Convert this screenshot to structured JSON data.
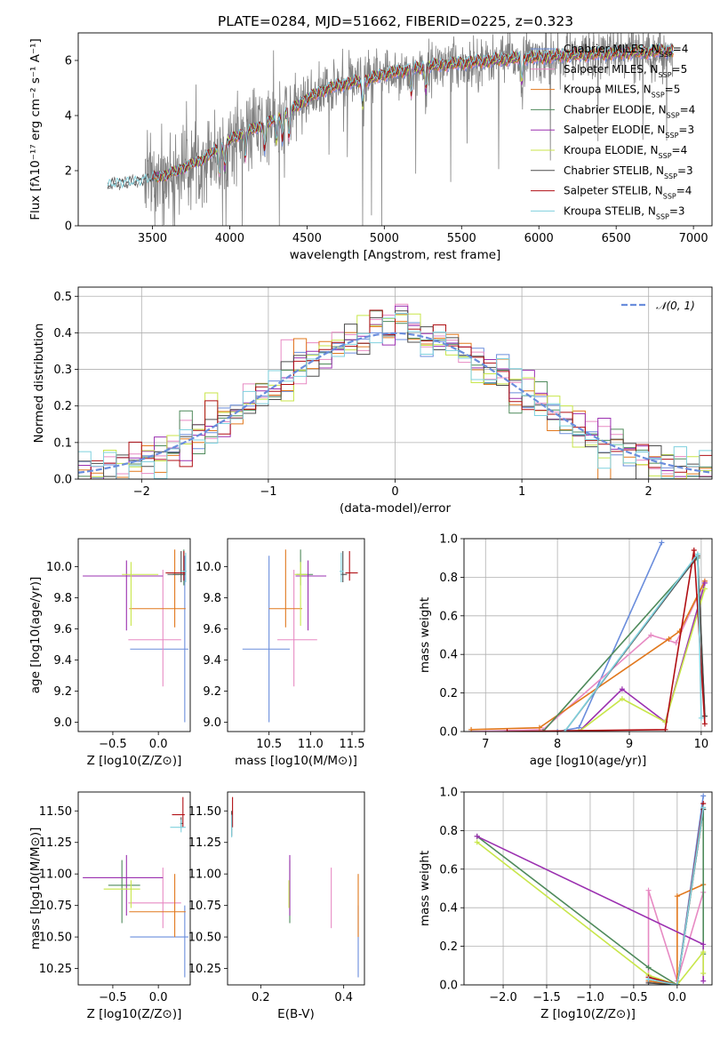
{
  "figure_title": "PLATE=0284, MJD=51662, FIBERID=0225, z=0.323",
  "colors": {
    "Chabrier MILES": "#6a8ddc",
    "Salpeter MILES": "#e78ac3",
    "Kroupa MILES": "#e1781d",
    "Chabrier ELODIE": "#4f8a5b",
    "Salpeter ELODIE": "#9b30b0",
    "Kroupa ELODIE": "#c8e64a",
    "Chabrier STELIB": "#4d4d4d",
    "Salpeter STELIB": "#b00f14",
    "Kroupa STELIB": "#7fd1de",
    "data": "#808080",
    "normal": "#6a8ddc"
  },
  "chart_data": [
    {
      "type": "line",
      "xlabel": "wavelength [Angstrom, rest frame]",
      "ylabel": "Flux [fλ10⁻¹⁷ erg cm⁻² s⁻¹ A⁻¹]",
      "xlim": [
        3020,
        7120
      ],
      "ylim": [
        0,
        7
      ],
      "xticks": [
        3500,
        4000,
        4500,
        5000,
        5500,
        6000,
        6500,
        7000
      ],
      "yticks": [
        0,
        2,
        4,
        6
      ],
      "legend_position": "upper-right",
      "data_series": {
        "name": "data",
        "x_range": [
          3210,
          6870
        ]
      },
      "model_continuum": {
        "x": [
          3210,
          3260,
          3400,
          3500,
          3600,
          3700,
          3800,
          3900,
          4000,
          4100,
          4200,
          4300,
          4400,
          4500,
          4600,
          4700,
          4800,
          4900,
          5000,
          5100,
          5200,
          5300,
          5400,
          5500,
          5600,
          5700,
          5800,
          5900,
          6000,
          6100,
          6200,
          6300,
          6400,
          6500,
          6600,
          6700,
          6800,
          6870
        ],
        "y": [
          1.45,
          1.55,
          1.6,
          1.75,
          1.85,
          2.1,
          2.35,
          2.7,
          3.1,
          3.4,
          3.6,
          3.9,
          4.2,
          4.6,
          4.9,
          5.1,
          5.2,
          5.3,
          5.5,
          5.6,
          5.7,
          5.8,
          5.85,
          5.9,
          5.95,
          6.0,
          6.05,
          6.1,
          6.1,
          6.15,
          6.2,
          6.2,
          6.25,
          6.25,
          6.3,
          6.3,
          6.35,
          6.35
        ]
      },
      "series": [
        {
          "name": "Chabrier MILES",
          "nssp": "4"
        },
        {
          "name": "Salpeter MILES",
          "nssp": "5"
        },
        {
          "name": "Kroupa MILES",
          "nssp": "5"
        },
        {
          "name": "Chabrier ELODIE",
          "nssp": "4"
        },
        {
          "name": "Salpeter ELODIE",
          "nssp": "3"
        },
        {
          "name": "Kroupa ELODIE",
          "nssp": "4"
        },
        {
          "name": "Chabrier STELIB",
          "nssp": "3"
        },
        {
          "name": "Salpeter STELIB",
          "nssp": "4"
        },
        {
          "name": "Kroupa STELIB",
          "nssp": "3"
        }
      ]
    },
    {
      "type": "line",
      "xlabel": "(data-model)/error",
      "ylabel": "Normed distribution",
      "xlim": [
        -2.5,
        2.5
      ],
      "ylim": [
        0,
        0.525
      ],
      "xticks": [
        -2,
        -1,
        0,
        1,
        2
      ],
      "yticks": [
        0.0,
        0.1,
        0.2,
        0.3,
        0.4,
        0.5
      ],
      "grid": true,
      "legend": {
        "label": "𝒩(0, 1)",
        "position": "upper-right"
      },
      "histogram": {
        "bin_width": 0.1,
        "x_range": [
          -2.5,
          2.5
        ]
      }
    },
    {
      "type": "scatter",
      "xlabel": "Z [log10(Z/Z⊙)]",
      "ylabel": "age  [log10(age/yr)]",
      "xlim": [
        -0.88,
        0.35
      ],
      "ylim": [
        8.94,
        10.18
      ],
      "xticks": [
        -0.5,
        0.0
      ],
      "yticks": [
        9.0,
        9.2,
        9.4,
        9.6,
        9.8,
        10.0
      ],
      "errorbars": [
        {
          "series": "Chabrier MILES",
          "x": 0.29,
          "xerr": [
            0.6,
            0.04
          ],
          "y": 9.47,
          "yerr": [
            0.47,
            0.6
          ]
        },
        {
          "series": "Salpeter MILES",
          "x": 0.05,
          "xerr": [
            0.38,
            0.2
          ],
          "y": 9.53,
          "yerr": [
            0.3,
            0.45
          ]
        },
        {
          "series": "Kroupa MILES",
          "x": 0.18,
          "xerr": [
            0.5,
            0.12
          ],
          "y": 9.73,
          "yerr": [
            0.12,
            0.38
          ]
        },
        {
          "series": "Chabrier ELODIE",
          "x": 0.28,
          "xerr": [
            0.12,
            0.02
          ],
          "y": 9.95,
          "yerr": [
            0.07,
            0.16
          ]
        },
        {
          "series": "Salpeter ELODIE",
          "x": -0.35,
          "xerr": [
            0.48,
            0.4
          ],
          "y": 9.94,
          "yerr": [
            0.35,
            0.1
          ]
        },
        {
          "series": "Kroupa ELODIE",
          "x": -0.3,
          "xerr": [
            0.1,
            0.3
          ],
          "y": 9.95,
          "yerr": [
            0.33,
            0.08
          ]
        },
        {
          "series": "Chabrier STELIB",
          "x": 0.25,
          "xerr": [
            0.15,
            0.05
          ],
          "y": 9.95,
          "yerr": [
            0.05,
            0.15
          ]
        },
        {
          "series": "Salpeter STELIB",
          "x": 0.28,
          "xerr": [
            0.2,
            0.02
          ],
          "y": 9.96,
          "yerr": [
            0.05,
            0.14
          ]
        },
        {
          "series": "Kroupa STELIB",
          "x": 0.3,
          "xerr": [
            0.05,
            0.01
          ],
          "y": 9.97,
          "yerr": [
            0.07,
            0.12
          ]
        }
      ]
    },
    {
      "type": "scatter",
      "xlabel": "mass [log10(M/M⊙)]",
      "ylabel": "",
      "xlim": [
        10.0,
        11.65
      ],
      "ylim": [
        8.94,
        10.18
      ],
      "xticks": [
        10.5,
        11.0,
        11.5
      ],
      "yticks": [
        9.0,
        9.2,
        9.4,
        9.6,
        9.8,
        10.0
      ],
      "errorbars": [
        {
          "series": "Chabrier MILES",
          "x": 10.5,
          "xerr": [
            0.32,
            0.25
          ],
          "y": 9.47,
          "yerr": [
            0.47,
            0.6
          ]
        },
        {
          "series": "Salpeter MILES",
          "x": 10.8,
          "xerr": [
            0.2,
            0.28
          ],
          "y": 9.53,
          "yerr": [
            0.3,
            0.45
          ]
        },
        {
          "series": "Kroupa MILES",
          "x": 10.7,
          "xerr": [
            0.2,
            0.2
          ],
          "y": 9.73,
          "yerr": [
            0.12,
            0.38
          ]
        },
        {
          "series": "Chabrier ELODIE",
          "x": 10.88,
          "xerr": [
            0.05,
            0.15
          ],
          "y": 9.95,
          "yerr": [
            0.07,
            0.16
          ]
        },
        {
          "series": "Salpeter ELODIE",
          "x": 10.97,
          "xerr": [
            0.15,
            0.22
          ],
          "y": 9.94,
          "yerr": [
            0.35,
            0.1
          ]
        },
        {
          "series": "Kroupa ELODIE",
          "x": 10.88,
          "xerr": [
            0.07,
            0.08
          ],
          "y": 9.95,
          "yerr": [
            0.33,
            0.08
          ]
        },
        {
          "series": "Chabrier STELIB",
          "x": 11.39,
          "xerr": [
            0.03,
            0.05
          ],
          "y": 9.95,
          "yerr": [
            0.05,
            0.15
          ]
        },
        {
          "series": "Salpeter STELIB",
          "x": 11.47,
          "xerr": [
            0.05,
            0.1
          ],
          "y": 9.96,
          "yerr": [
            0.05,
            0.14
          ]
        },
        {
          "series": "Kroupa STELIB",
          "x": 11.37,
          "xerr": [
            0.02,
            0.03
          ],
          "y": 9.97,
          "yerr": [
            0.07,
            0.12
          ]
        }
      ]
    },
    {
      "type": "line",
      "xlabel": "age  [log10(age/yr)]",
      "ylabel": "mass weight",
      "xlim": [
        6.7,
        10.15
      ],
      "ylim": [
        0,
        1.0
      ],
      "xticks": [
        7,
        8,
        9,
        10
      ],
      "yticks": [
        0.0,
        0.2,
        0.4,
        0.6,
        0.8,
        1.0
      ],
      "grid": true,
      "series": [
        {
          "name": "Chabrier MILES",
          "x": [
            6.8,
            8.0,
            8.3,
            9.45
          ],
          "y": [
            0.0,
            0.0,
            0.02,
            0.98
          ]
        },
        {
          "name": "Salpeter MILES",
          "x": [
            6.8,
            7.8,
            9.3,
            9.65,
            10.05
          ],
          "y": [
            0.0,
            0.01,
            0.5,
            0.46,
            0.78
          ]
        },
        {
          "name": "Kroupa MILES",
          "x": [
            6.8,
            7.75,
            9.55,
            9.7,
            10.05
          ],
          "y": [
            0.01,
            0.02,
            0.48,
            0.52,
            0.78
          ]
        },
        {
          "name": "Chabrier ELODIE",
          "x": [
            7.8,
            9.95,
            10.05
          ],
          "y": [
            0.0,
            0.9,
            0.08
          ]
        },
        {
          "name": "Salpeter ELODIE",
          "x": [
            8.3,
            8.9,
            9.5,
            10.05
          ],
          "y": [
            0.0,
            0.22,
            0.05,
            0.77
          ]
        },
        {
          "name": "Kroupa ELODIE",
          "x": [
            8.3,
            8.9,
            9.5,
            10.05
          ],
          "y": [
            0.0,
            0.17,
            0.05,
            0.74
          ]
        },
        {
          "name": "Chabrier STELIB",
          "x": [
            8.1,
            9.95,
            10.05
          ],
          "y": [
            0.0,
            0.91,
            0.08
          ]
        },
        {
          "name": "Salpeter STELIB",
          "x": [
            7.3,
            9.5,
            9.9,
            10.05
          ],
          "y": [
            0.0,
            0.01,
            0.94,
            0.04
          ]
        },
        {
          "name": "Kroupa STELIB",
          "x": [
            8.1,
            9.95,
            10.0
          ],
          "y": [
            0.0,
            0.92,
            0.07
          ]
        }
      ]
    },
    {
      "type": "scatter",
      "xlabel": "Z [log10(Z/Z⊙)]",
      "ylabel": "mass [log10(M/M⊙)]",
      "xlim": [
        -0.88,
        0.35
      ],
      "ylim": [
        10.12,
        11.65
      ],
      "xticks": [
        -0.5,
        0.0
      ],
      "yticks": [
        10.25,
        10.5,
        10.75,
        11.0,
        11.25,
        11.5
      ],
      "errorbars": [
        {
          "series": "Chabrier MILES",
          "x": 0.29,
          "xerr": [
            0.6,
            0.04
          ],
          "y": 10.5,
          "yerr": [
            0.32,
            0.25
          ]
        },
        {
          "series": "Salpeter MILES",
          "x": 0.05,
          "xerr": [
            0.38,
            0.2
          ],
          "y": 10.77,
          "yerr": [
            0.2,
            0.28
          ]
        },
        {
          "series": "Kroupa MILES",
          "x": 0.18,
          "xerr": [
            0.5,
            0.12
          ],
          "y": 10.7,
          "yerr": [
            0.2,
            0.3
          ]
        },
        {
          "series": "Chabrier ELODIE",
          "x": -0.4,
          "xerr": [
            0.15,
            0.2
          ],
          "y": 10.91,
          "yerr": [
            0.3,
            0.2
          ]
        },
        {
          "series": "Salpeter ELODIE",
          "x": -0.35,
          "xerr": [
            0.48,
            0.4
          ],
          "y": 10.97,
          "yerr": [
            0.3,
            0.18
          ]
        },
        {
          "series": "Kroupa ELODIE",
          "x": -0.3,
          "xerr": [
            0.3,
            0.1
          ],
          "y": 10.88,
          "yerr": [
            0.15,
            0.07
          ]
        },
        {
          "series": "Chabrier STELIB",
          "x": 0.25,
          "xerr": [
            0.01,
            0.02
          ],
          "y": 11.4,
          "yerr": [
            0.03,
            0.05
          ]
        },
        {
          "series": "Salpeter STELIB",
          "x": 0.27,
          "xerr": [
            0.12,
            0.02
          ],
          "y": 11.47,
          "yerr": [
            0.1,
            0.14
          ]
        },
        {
          "series": "Kroupa STELIB",
          "x": 0.25,
          "xerr": [
            0.12,
            0.05
          ],
          "y": 11.37,
          "yerr": [
            0.04,
            0.06
          ]
        }
      ]
    },
    {
      "type": "scatter",
      "xlabel": "E(B-V)",
      "ylabel": "",
      "xlim": [
        0.12,
        0.45
      ],
      "ylim": [
        10.12,
        11.65
      ],
      "xticks": [
        0.2,
        0.4
      ],
      "yticks": [
        10.25,
        10.5,
        10.75,
        11.0,
        11.25,
        11.5
      ],
      "errorbars": [
        {
          "series": "Chabrier MILES",
          "x": 0.435,
          "y": 10.5,
          "yerr": [
            0.32,
            0.25
          ]
        },
        {
          "series": "Salpeter MILES",
          "x": 0.37,
          "y": 10.77,
          "yerr": [
            0.2,
            0.28
          ]
        },
        {
          "series": "Kroupa MILES",
          "x": 0.435,
          "y": 10.7,
          "yerr": [
            0.2,
            0.3
          ]
        },
        {
          "series": "Chabrier ELODIE",
          "x": 0.27,
          "y": 10.91,
          "yerr": [
            0.3,
            0.2
          ]
        },
        {
          "series": "Salpeter ELODIE",
          "x": 0.27,
          "y": 10.97,
          "yerr": [
            0.3,
            0.18
          ]
        },
        {
          "series": "Kroupa ELODIE",
          "x": 0.268,
          "y": 10.88,
          "yerr": [
            0.15,
            0.07
          ]
        },
        {
          "series": "Chabrier STELIB",
          "x": 0.13,
          "y": 11.4,
          "yerr": [
            0.1,
            0.1
          ]
        },
        {
          "series": "Salpeter STELIB",
          "x": 0.132,
          "y": 11.47,
          "yerr": [
            0.1,
            0.14
          ]
        },
        {
          "series": "Kroupa STELIB",
          "x": 0.13,
          "y": 11.37,
          "yerr": [
            0.08,
            0.1
          ]
        }
      ]
    },
    {
      "type": "line",
      "xlabel": "Z [log10(Z/Z⊙)]",
      "ylabel": "mass weight",
      "xlim": [
        -2.45,
        0.4
      ],
      "ylim": [
        0,
        1.0
      ],
      "xticks": [
        -2.0,
        -1.5,
        -1.0,
        -0.5,
        0.0
      ],
      "yticks": [
        0.0,
        0.2,
        0.4,
        0.6,
        0.8,
        1.0
      ],
      "grid": true,
      "series": [
        {
          "name": "Chabrier MILES",
          "x": [
            -0.33,
            0.0,
            0.3
          ],
          "y": [
            0.02,
            0.0,
            0.98
          ]
        },
        {
          "name": "Salpeter MILES",
          "x": [
            -0.33,
            -0.33,
            0.0,
            0.3
          ],
          "y": [
            0.01,
            0.49,
            0.02,
            0.48
          ]
        },
        {
          "name": "Kroupa MILES",
          "x": [
            -0.33,
            0.0,
            0.0,
            0.3
          ],
          "y": [
            0.02,
            0.0,
            0.46,
            0.52
          ]
        },
        {
          "name": "Chabrier ELODIE",
          "x": [
            -2.3,
            -0.33,
            0.0,
            0.3,
            0.3
          ],
          "y": [
            0.77,
            0.09,
            0.0,
            0.91,
            0.16
          ]
        },
        {
          "name": "Salpeter ELODIE",
          "x": [
            -2.3,
            0.3,
            0.3
          ],
          "y": [
            0.77,
            0.21,
            0.02
          ]
        },
        {
          "name": "Kroupa ELODIE",
          "x": [
            -2.3,
            -0.33,
            0.0,
            0.3,
            0.3
          ],
          "y": [
            0.74,
            0.05,
            0.0,
            0.17,
            0.06
          ]
        },
        {
          "name": "Chabrier STELIB",
          "x": [
            -0.33,
            0.0,
            0.3
          ],
          "y": [
            0.01,
            0.0,
            0.91
          ]
        },
        {
          "name": "Salpeter STELIB",
          "x": [
            -0.33,
            0.0,
            0.3
          ],
          "y": [
            0.04,
            0.0,
            0.94
          ]
        },
        {
          "name": "Kroupa STELIB",
          "x": [
            -0.33,
            0.0,
            0.3
          ],
          "y": [
            0.03,
            0.0,
            0.92
          ]
        }
      ]
    }
  ]
}
